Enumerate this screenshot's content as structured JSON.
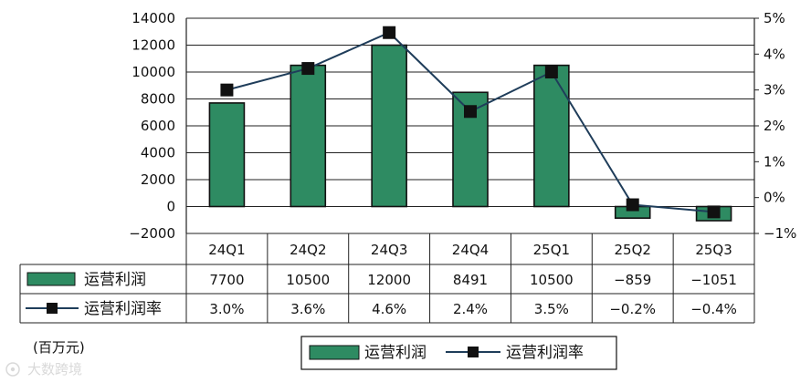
{
  "chart_data": {
    "type": "bar",
    "categories": [
      "24Q1",
      "24Q2",
      "24Q3",
      "24Q4",
      "25Q1",
      "25Q2",
      "25Q3"
    ],
    "series": [
      {
        "name": "运营利润",
        "kind": "bar",
        "axis": "left",
        "color": "#2e8b62",
        "values": [
          7700,
          10500,
          12000,
          8491,
          10500,
          -859,
          -1051
        ],
        "labels": [
          "7700",
          "10500",
          "12000",
          "8491",
          "10500",
          "−859",
          "−1051"
        ]
      },
      {
        "name": "运营利润率",
        "kind": "line",
        "axis": "right",
        "color": "#1f3d5a",
        "marker": "square",
        "values": [
          3.0,
          3.6,
          4.6,
          2.4,
          3.5,
          -0.2,
          -0.4
        ],
        "labels": [
          "3.0%",
          "3.6%",
          "4.6%",
          "2.4%",
          "3.5%",
          "−0.2%",
          "−0.4%"
        ]
      }
    ],
    "y_left": {
      "ylim": [
        -2000,
        14000
      ],
      "ticks": [
        14000,
        12000,
        10000,
        8000,
        6000,
        4000,
        2000,
        0,
        -2000
      ],
      "tick_labels": [
        "14000",
        "12000",
        "10000",
        "8000",
        "6000",
        "4000",
        "2000",
        "0",
        "−2000"
      ]
    },
    "y_right": {
      "ylim": [
        -1,
        5
      ],
      "ticks": [
        5,
        4,
        3,
        2,
        1,
        0,
        -1
      ],
      "tick_labels": [
        "5%",
        "4%",
        "3%",
        "2%",
        "1%",
        "0%",
        "−1%"
      ]
    },
    "grid": true,
    "data_table": true,
    "legend": "bottom-center",
    "unit_label": "(百万元)"
  },
  "watermark": "大数跨境"
}
